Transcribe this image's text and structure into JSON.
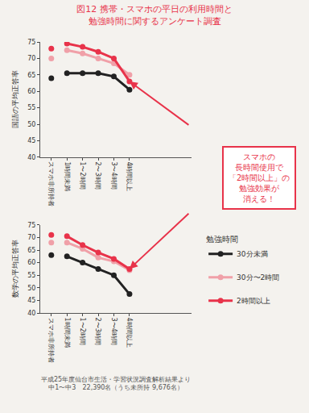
{
  "title": [
    "図12 携帯・スマホの平日の利用時間と",
    "勉強時間に関するアンケート調査"
  ],
  "callout": [
    "スマホの",
    "長時間使用で",
    "「2時間以上」の",
    "勉強効果が",
    "消える！"
  ],
  "source": [
    "平成25年度仙台市生活・学習状況調査解析結果より",
    "中1〜中3　22,390名（うち未所持 9,676名）"
  ],
  "chart_data": [
    {
      "type": "line",
      "y_label": "国語の平均正答率",
      "categories": [
        "スマホ非所持者",
        "1時間未満",
        "1〜2時間",
        "2〜3時間",
        "3〜4時間",
        "4時間以上"
      ],
      "series": [
        {
          "name": "30分未満",
          "color": "#222222",
          "values": [
            64,
            65.5,
            65.5,
            65.5,
            64.5,
            60.5
          ]
        },
        {
          "name": "30分〜2時間",
          "color": "#f0a0a8",
          "values": [
            70,
            72.5,
            71.5,
            70,
            68.5,
            65
          ]
        },
        {
          "name": "2時間以上",
          "color": "#e8334a",
          "values": [
            73,
            74.5,
            73.5,
            72,
            70,
            63
          ]
        }
      ],
      "ylim": [
        40,
        75
      ],
      "yticks": [
        40,
        45,
        50,
        55,
        60,
        65,
        70,
        75
      ],
      "grid": false,
      "marker": "circle"
    },
    {
      "type": "line",
      "y_label": "数学の平均正答率",
      "categories": [
        "スマホ非所持者",
        "1時間未満",
        "1〜2時間",
        "2〜3時間",
        "3〜4時間",
        "4時間以上"
      ],
      "series": [
        {
          "name": "30分未満",
          "color": "#222222",
          "values": [
            63,
            62.5,
            60,
            57.5,
            55,
            47.5
          ]
        },
        {
          "name": "30分〜2時間",
          "color": "#f0a0a8",
          "values": [
            68,
            68,
            65.5,
            62,
            60.5,
            57
          ]
        },
        {
          "name": "2時間以上",
          "color": "#e8334a",
          "values": [
            71,
            70.5,
            67,
            64,
            61.5,
            57.5
          ]
        }
      ],
      "ylim": [
        40,
        75
      ],
      "yticks": [
        40,
        45,
        50,
        55,
        60,
        65,
        70,
        75
      ],
      "grid": false,
      "marker": "circle",
      "legend": "right",
      "legend_title": "勉強時間"
    }
  ]
}
